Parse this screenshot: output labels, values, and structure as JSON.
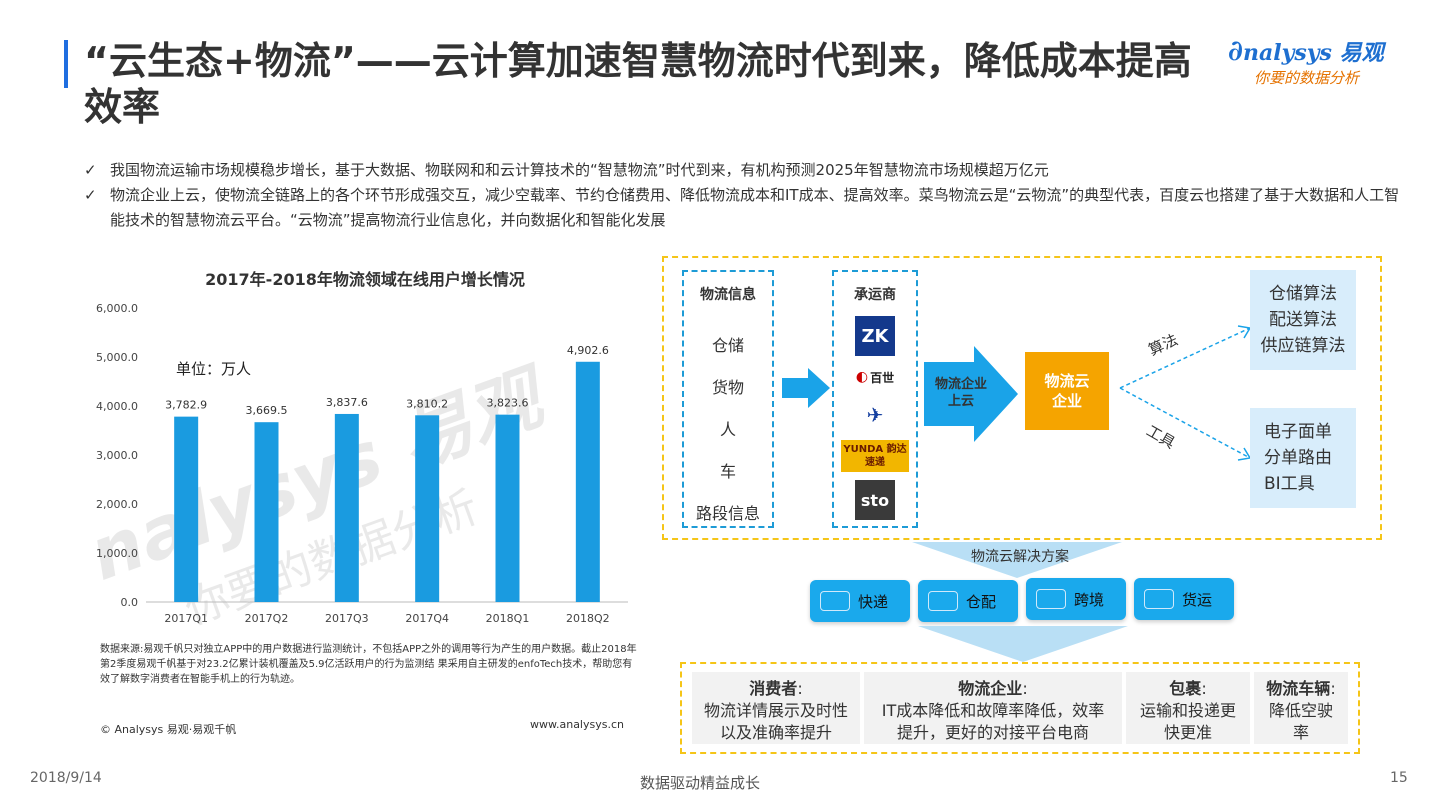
{
  "title": "“云生态+物流”——云计算加速智慧物流时代到来，降低成本提高效率",
  "logo": {
    "brand": "nalysys 易观",
    "slogan": "你要的数据分析"
  },
  "bullets": [
    "我国物流运输市场规模稳步增长，基于大数据、物联网和和云计算技术的“智慧物流”时代到来，有机构预测2025年智慧物流市场规模超万亿元",
    "物流企业上云，使物流全链路上的各个环节形成强交互，减少空载率、节约仓储费用、降低物流成本和IT成本、提高效率。菜鸟物流云是“云物流”的典型代表，百度云也搭建了基于大数据和人工智能技术的智慧物流云平台。“云物流”提高物流行业信息化，并向数据化和智能化发展"
  ],
  "bullet_mark": "✓",
  "chart_data": {
    "type": "bar",
    "title": "2017年-2018年物流领域在线用户增长情况",
    "unit_label": "单位：万人",
    "categories": [
      "2017Q1",
      "2017Q2",
      "2017Q3",
      "2017Q4",
      "2018Q1",
      "2018Q2"
    ],
    "values": [
      3782.9,
      3669.5,
      3837.6,
      3810.2,
      3823.6,
      4902.6
    ],
    "value_labels": [
      "3,782.9",
      "3,669.5",
      "3,837.6",
      "3,810.2",
      "3,823.6",
      "4,902.6"
    ],
    "yticks": [
      "0.0",
      "1,000.0",
      "2,000.0",
      "3,000.0",
      "4,000.0",
      "5,000.0",
      "6,000.0"
    ],
    "ylim": [
      0,
      6000
    ],
    "bar_color": "#1a9be0",
    "grid": false
  },
  "chart_note": "数据来源:易观千帆只对独立APP中的用户数据进行监测统计，不包括APP之外的调用等行为产生的用户数据。截止2018年第2季度易观千帆基于对23.2亿累计装机覆盖及5.9亿活跃用户的行为监测结 果采用自主研发的enfoTech技术，帮助您有效了解数字消费者在智能手机上的行为轨迹。",
  "copyright": "© Analysys 易观·易观千帆",
  "website": "www.analysys.cn",
  "watermark": {
    "brand": "nalysys 易观",
    "slogan": "你要的数据分析"
  },
  "diagram": {
    "info": {
      "head": "物流信息",
      "items": [
        "仓储",
        "货物",
        "人",
        "车",
        "路段信息"
      ]
    },
    "carriers": {
      "head": "承运商",
      "logos": [
        "百世",
        "YUNDA 韵达速递",
        "sto"
      ]
    },
    "cloud_arrow": "物流企业上云",
    "cloud_box": "物流云企业",
    "algo_label": "算法",
    "tool_label": "工具",
    "algo_box": [
      "仓储算法",
      "配送算法",
      "供应链算法"
    ],
    "tool_box": [
      "电子面单",
      "分单路由",
      "BI工具"
    ],
    "solution_title": "物流云解决方案",
    "solutions": [
      "快递",
      "仓配",
      "跨境",
      "货运"
    ],
    "bottom": [
      {
        "head": "消费者",
        "text": "物流详情展示及时性以及准确率提升"
      },
      {
        "head": "物流企业",
        "text": "IT成本降低和故障率降低，效率提升，更好的对接平台电商"
      },
      {
        "head": "包裹",
        "text": "运输和投递更快更准"
      },
      {
        "head": "物流车辆",
        "text": "降低空驶率"
      }
    ],
    "colon": ":"
  },
  "footer": {
    "date": "2018/9/14",
    "center": "数据驱动精益成长",
    "page": "15"
  },
  "colors": {
    "accent": "#1a9be0",
    "orange": "#f5a400",
    "yellow_dash": "#f5c518"
  }
}
